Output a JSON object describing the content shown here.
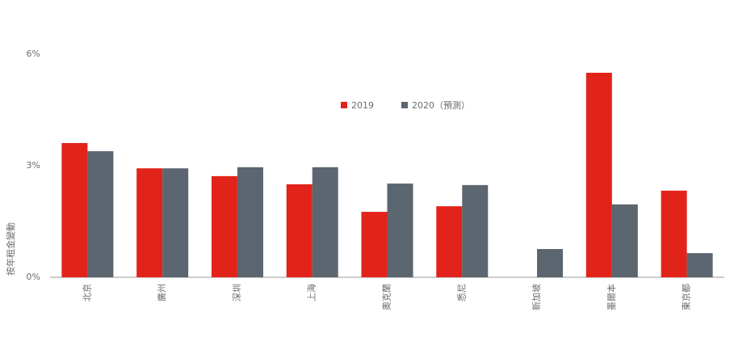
{
  "chart_data": {
    "type": "bar",
    "y_label": "按年租金變動",
    "categories": [
      "北京",
      "廣州",
      "深圳",
      "上海",
      "奧克蘭",
      "悉尼",
      "新加坡",
      "墨爾本",
      "東京都"
    ],
    "series": [
      {
        "name": "2019",
        "color": "#e2231a",
        "values": [
          3.61,
          2.93,
          2.72,
          2.5,
          1.76,
          1.91,
          null,
          5.5,
          2.33
        ]
      },
      {
        "name": "2020（預測）",
        "color": "#5b6670",
        "values": [
          3.39,
          2.93,
          2.96,
          2.96,
          2.52,
          2.48,
          0.76,
          1.96,
          0.65
        ]
      }
    ],
    "ylim": [
      0,
      6
    ],
    "yticks": [
      {
        "value": 0,
        "label": "0%"
      },
      {
        "value": 3,
        "label": "3%"
      },
      {
        "value": 6,
        "label": "6%"
      }
    ],
    "legend": "top-center"
  }
}
